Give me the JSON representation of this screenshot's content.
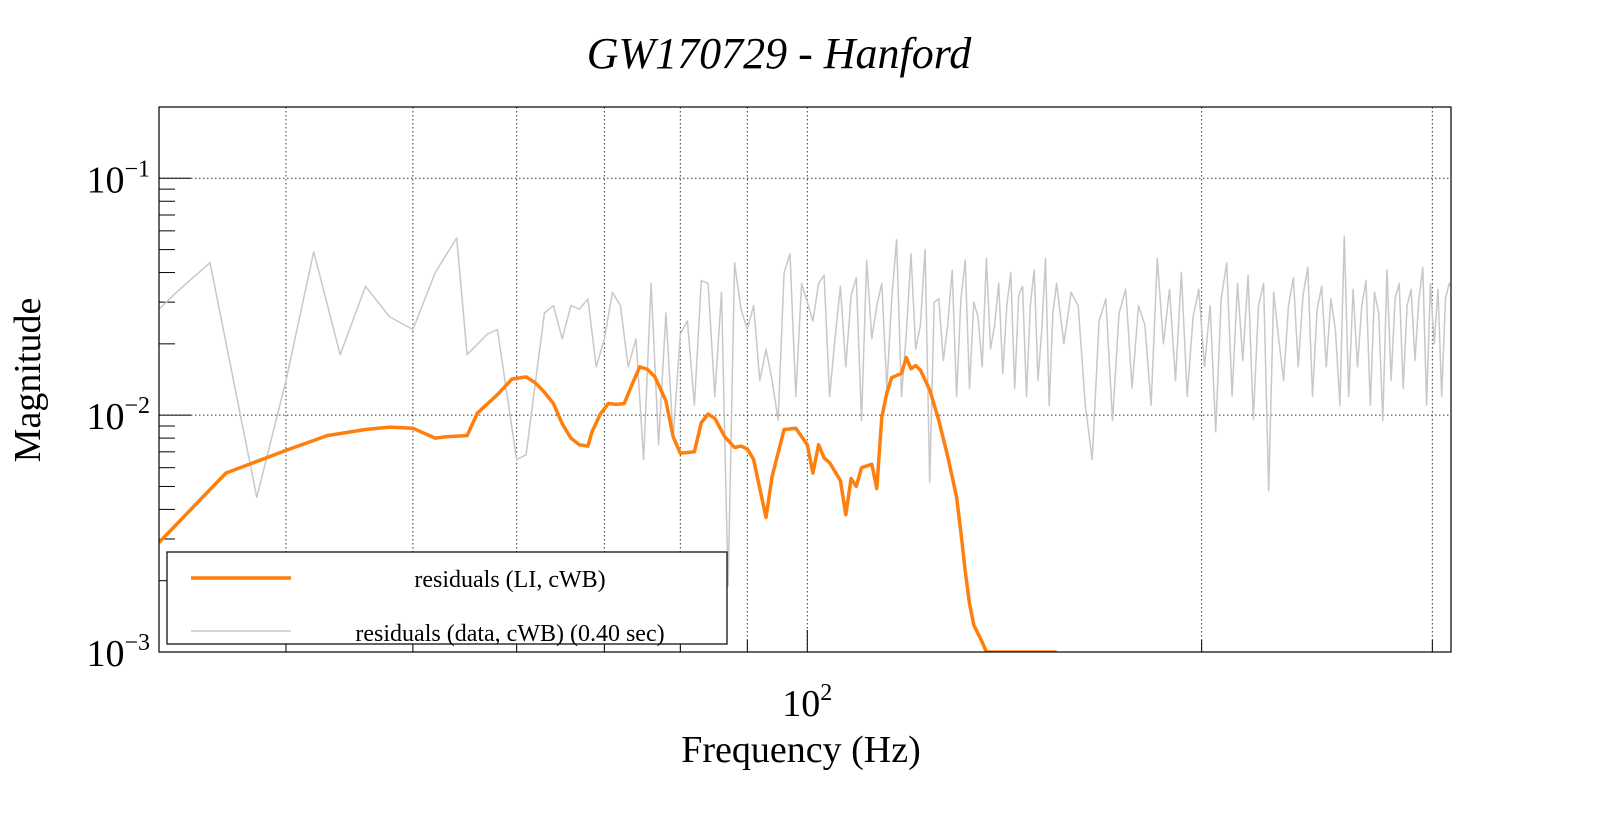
{
  "chart_data": {
    "type": "line",
    "title": "GW170729 - Hanford",
    "xlabel": "Frequency (Hz)",
    "ylabel": "Magnitude",
    "xscale": "log",
    "yscale": "log",
    "xlim": [
      32,
      310
    ],
    "ylim": [
      0.001,
      0.2
    ],
    "grid": true,
    "legend_position": "bottom-left",
    "x_tick_labels": [
      {
        "value": 100,
        "base": "10",
        "exp": "2"
      }
    ],
    "y_tick_labels": [
      {
        "value": 0.1,
        "base": "10",
        "exp": "−1"
      },
      {
        "value": 0.01,
        "base": "10",
        "exp": "−2"
      },
      {
        "value": 0.001,
        "base": "10",
        "exp": "−3"
      }
    ],
    "series": [
      {
        "name": "residuals (LI, cWB)",
        "color": "#ff7f0e",
        "line_width": 3.5,
        "x": [
          32,
          36,
          40,
          43,
          46,
          48,
          50,
          52,
          53,
          55,
          56,
          58,
          59.5,
          61,
          62,
          63,
          64,
          65,
          66,
          67,
          68,
          68.5,
          69.5,
          70.5,
          71.5,
          72.5,
          73.5,
          74.5,
          75.5,
          76.5,
          78,
          79,
          80,
          82,
          83,
          84,
          85,
          86.5,
          88,
          89,
          90,
          91,
          93,
          94,
          96,
          98,
          100,
          101,
          102,
          103,
          104,
          106,
          107,
          108,
          109,
          110,
          112,
          113,
          114,
          115,
          116,
          118,
          119,
          120,
          121,
          122,
          124,
          126,
          128,
          130,
          131,
          132,
          133,
          134,
          136,
          137,
          140,
          142,
          144,
          147,
          149,
          151,
          153,
          155
        ],
        "y": [
          0.0029,
          0.0057,
          0.0071,
          0.0082,
          0.0087,
          0.0089,
          0.0088,
          0.008,
          0.0081,
          0.0082,
          0.0102,
          0.0122,
          0.0142,
          0.0145,
          0.0137,
          0.0125,
          0.0112,
          0.0092,
          0.008,
          0.0075,
          0.0074,
          0.0085,
          0.0101,
          0.0112,
          0.0111,
          0.0112,
          0.0135,
          0.016,
          0.0156,
          0.0145,
          0.0115,
          0.0081,
          0.0069,
          0.007,
          0.0093,
          0.0101,
          0.0097,
          0.0081,
          0.0073,
          0.0074,
          0.0072,
          0.0065,
          0.0037,
          0.0055,
          0.0087,
          0.0088,
          0.0075,
          0.0057,
          0.0075,
          0.0066,
          0.0063,
          0.0053,
          0.0038,
          0.0054,
          0.005,
          0.006,
          0.0062,
          0.0049,
          0.0098,
          0.0124,
          0.0144,
          0.015,
          0.0175,
          0.0157,
          0.0162,
          0.0155,
          0.0128,
          0.0095,
          0.0067,
          0.0045,
          0.0032,
          0.0022,
          0.0016,
          0.0013,
          0.0011,
          0.001,
          0.001,
          0.001,
          0.001,
          0.001,
          0.001,
          0.001,
          0.001,
          0.001
        ]
      },
      {
        "name": "residuals (data, cWB) (0.40 sec)",
        "color": "#c8c8c8",
        "line_width": 1.5,
        "x": [
          32,
          33,
          35,
          38,
          40,
          42,
          44,
          46,
          48,
          50,
          52,
          54,
          55,
          57,
          58,
          60,
          61,
          63,
          64,
          65,
          66,
          67,
          68,
          69,
          70,
          71,
          72,
          73,
          74,
          75,
          76,
          77,
          78,
          79,
          80,
          81,
          82,
          83,
          84,
          85,
          86,
          87,
          88,
          89,
          90,
          91,
          92,
          93,
          94,
          95,
          96,
          97,
          98,
          99,
          100,
          101,
          102,
          103,
          104,
          105,
          106,
          107,
          108,
          109,
          110,
          111,
          112,
          113,
          114,
          115,
          116,
          117,
          118,
          119,
          120,
          121,
          122,
          123,
          124,
          125,
          126,
          127,
          128,
          129,
          130,
          131,
          132,
          133,
          134,
          135,
          136,
          137,
          138,
          139,
          140,
          141,
          142,
          143,
          144,
          145,
          146,
          147,
          148,
          149,
          150,
          151,
          152,
          153,
          154,
          155,
          157,
          159,
          161,
          163,
          165,
          167,
          169,
          171,
          173,
          175,
          177,
          179,
          181,
          183,
          185,
          187,
          189,
          191,
          193,
          195,
          197,
          199,
          201,
          203,
          205,
          207,
          209,
          211,
          213,
          215,
          217,
          219,
          221,
          223,
          225,
          227,
          229,
          231,
          233,
          235,
          237,
          239,
          241,
          243,
          245,
          247,
          249,
          251,
          253,
          255,
          257,
          259,
          261,
          263,
          265,
          267,
          269,
          271,
          273,
          275,
          277,
          279,
          281,
          283,
          285,
          287,
          289,
          291,
          293,
          295,
          297,
          299,
          301,
          303,
          305,
          307,
          309,
          310
        ],
        "y": [
          0.028,
          0.033,
          0.044,
          0.0045,
          0.014,
          0.049,
          0.018,
          0.035,
          0.026,
          0.023,
          0.04,
          0.056,
          0.018,
          0.022,
          0.023,
          0.0065,
          0.0068,
          0.027,
          0.029,
          0.021,
          0.029,
          0.028,
          0.031,
          0.016,
          0.021,
          0.033,
          0.029,
          0.016,
          0.021,
          0.0065,
          0.036,
          0.0075,
          0.027,
          0.008,
          0.022,
          0.025,
          0.011,
          0.037,
          0.036,
          0.012,
          0.033,
          0.0019,
          0.044,
          0.028,
          0.023,
          0.029,
          0.014,
          0.019,
          0.014,
          0.0095,
          0.04,
          0.048,
          0.012,
          0.036,
          0.03,
          0.025,
          0.036,
          0.039,
          0.012,
          0.021,
          0.035,
          0.016,
          0.032,
          0.038,
          0.0095,
          0.045,
          0.021,
          0.029,
          0.036,
          0.013,
          0.031,
          0.055,
          0.012,
          0.022,
          0.048,
          0.019,
          0.024,
          0.05,
          0.0052,
          0.03,
          0.031,
          0.017,
          0.024,
          0.041,
          0.012,
          0.031,
          0.045,
          0.013,
          0.03,
          0.026,
          0.016,
          0.046,
          0.019,
          0.024,
          0.036,
          0.015,
          0.029,
          0.04,
          0.013,
          0.032,
          0.035,
          0.012,
          0.029,
          0.041,
          0.014,
          0.023,
          0.046,
          0.011,
          0.027,
          0.036,
          0.02,
          0.033,
          0.029,
          0.011,
          0.0065,
          0.025,
          0.031,
          0.0095,
          0.027,
          0.034,
          0.013,
          0.029,
          0.024,
          0.011,
          0.046,
          0.02,
          0.034,
          0.014,
          0.04,
          0.012,
          0.026,
          0.034,
          0.016,
          0.029,
          0.0085,
          0.031,
          0.044,
          0.012,
          0.036,
          0.017,
          0.039,
          0.0096,
          0.029,
          0.036,
          0.0048,
          0.033,
          0.021,
          0.014,
          0.029,
          0.038,
          0.016,
          0.032,
          0.042,
          0.012,
          0.028,
          0.035,
          0.016,
          0.031,
          0.023,
          0.011,
          0.057,
          0.012,
          0.034,
          0.016,
          0.029,
          0.037,
          0.011,
          0.033,
          0.027,
          0.0095,
          0.041,
          0.014,
          0.031,
          0.036,
          0.013,
          0.029,
          0.034,
          0.017,
          0.031,
          0.042,
          0.011,
          0.036,
          0.02,
          0.034,
          0.012,
          0.031,
          0.036,
          0.035
        ]
      }
    ]
  }
}
